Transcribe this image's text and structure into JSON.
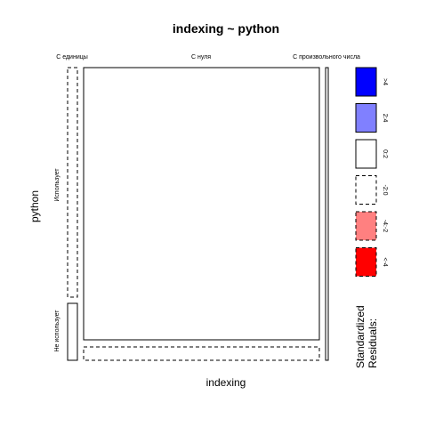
{
  "chart_data": {
    "type": "mosaic",
    "title": "indexing ~ python",
    "xlabel": "indexing",
    "ylabel": "python",
    "x_categories": [
      "С единицы",
      "С нуля",
      "С произвольного числа"
    ],
    "y_categories": [
      "Использует",
      "Не использует"
    ],
    "cells": [
      {
        "x": "С единицы",
        "y": "Использует",
        "residual_class": "<-2:0",
        "dashed": true
      },
      {
        "x": "С единицы",
        "y": "Не использует",
        "residual_class": "0:2",
        "dashed": false
      },
      {
        "x": "С нуля",
        "y": "Использует",
        "residual_class": "0:2",
        "dashed": false
      },
      {
        "x": "С нуля",
        "y": "Не использует",
        "residual_class": "<-2:0",
        "dashed": true
      },
      {
        "x": "С произвольного числа",
        "y": "Использует",
        "residual_class": "0:2",
        "dashed": false
      },
      {
        "x": "С произвольного числа",
        "y": "Не использует",
        "residual_class": "0:2",
        "dashed": false
      }
    ],
    "legend": {
      "title": "Standardized Residuals:",
      "placement": "right",
      "items": [
        {
          "label": ">4",
          "color": "#0000ff",
          "dashed": false
        },
        {
          "label": "2:4",
          "color": "#8080ff",
          "dashed": false
        },
        {
          "label": "0:2",
          "color": "#ffffff",
          "dashed": false
        },
        {
          "label": "-2:0",
          "color": "#ffffff",
          "dashed": true
        },
        {
          "label": "-4:-2",
          "color": "#ff8080",
          "dashed": true
        },
        {
          "label": "<-4",
          "color": "#ff0000",
          "dashed": true
        }
      ]
    }
  }
}
